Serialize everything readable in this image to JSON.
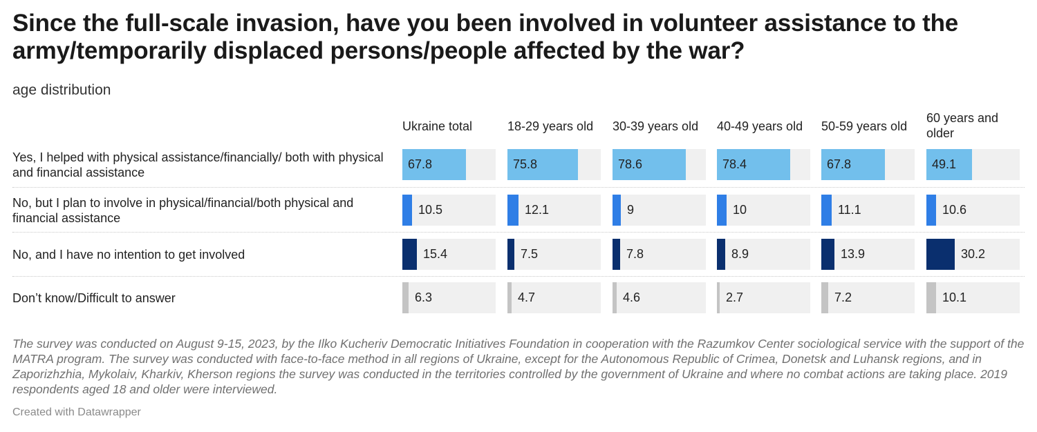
{
  "title": "Since the full-scale invasion, have you been involved in volunteer assistance to the army/temporarily displaced persons/people affected by the war?",
  "subtitle": "age distribution",
  "chart_data": {
    "type": "bar",
    "columns": [
      "Ukraine total",
      "18-29 years old",
      "30-39 years old",
      "40-49 years old",
      "50-59 years old",
      "60 years and older"
    ],
    "rows": [
      {
        "label": "Yes, I helped with physical assistance/financially/ both with physical and financial assistance",
        "color": "#72bfec",
        "values": [
          "67.8",
          "75.8",
          "78.6",
          "78.4",
          "67.8",
          "49.1"
        ]
      },
      {
        "label": "No, but I plan to involve in physical/financial/both physical and financial assistance",
        "color": "#2f7ee6",
        "values": [
          "10.5",
          "12.1",
          "9",
          "10",
          "11.1",
          "10.6"
        ]
      },
      {
        "label": "No, and I have no intention to get involved",
        "color": "#0a2f6e",
        "values": [
          "15.4",
          "7.5",
          "7.8",
          "8.9",
          "13.9",
          "30.2"
        ]
      },
      {
        "label": "Don’t know/Difficult to answer",
        "color": "#c4c4c4",
        "values": [
          "6.3",
          "4.7",
          "4.6",
          "2.7",
          "7.2",
          "10.1"
        ]
      }
    ],
    "xlim": [
      0,
      100
    ],
    "background_color": "#f0f0f0"
  },
  "notes": "The survey was conducted on August 9-15, 2023, by the Ilko Kucheriv Democratic Initiatives Foundation in cooperation with the Razumkov Center sociological service with the support of the MATRA program. The survey was conducted with face-to-face method in all regions of Ukraine, except for the Autonomous Republic of Crimea, Donetsk and Luhansk regions, and in Zaporizhzhia, Mykolaiv, Kharkiv, Kherson regions the survey was conducted in the territories controlled by the government of Ukraine and where no combat actions are taking place. 2019 respondents aged 18 and older were interviewed.",
  "credit": "Created with Datawrapper"
}
